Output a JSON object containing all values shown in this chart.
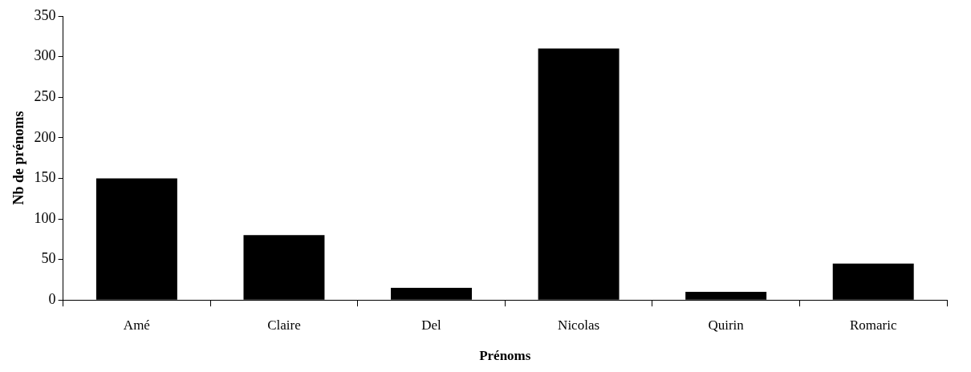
{
  "chart_data": {
    "type": "bar",
    "xlabel": "Prénoms",
    "ylabel": "Nb de prénoms",
    "categories": [
      "Amé",
      "Claire",
      "Del",
      "Nicolas",
      "Quirin",
      "Romaric"
    ],
    "values": [
      150,
      80,
      15,
      310,
      10,
      45
    ],
    "color": "#000000",
    "ylim": [
      0,
      350
    ],
    "yticks": [
      0,
      50,
      100,
      150,
      200,
      250,
      300,
      350
    ],
    "grid": false,
    "legend": false
  }
}
